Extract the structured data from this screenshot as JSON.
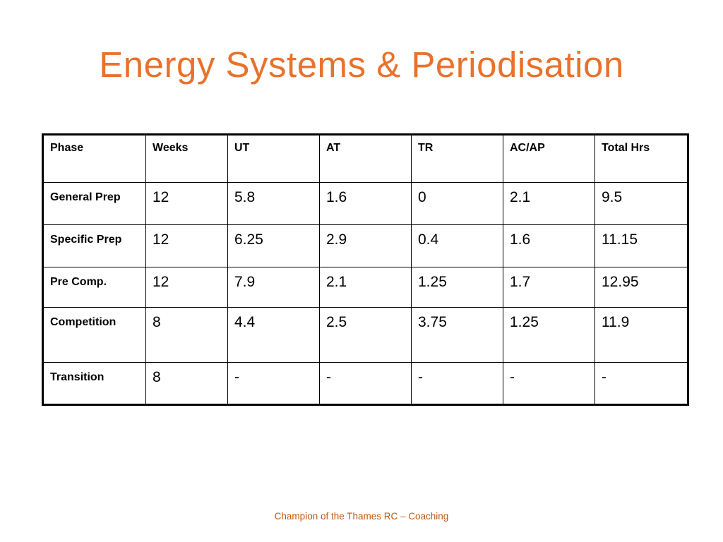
{
  "slide": {
    "title": "Energy Systems & Periodisation",
    "footer": "Champion of the Thames RC – Coaching",
    "accent_color": "#e8722c"
  },
  "table": {
    "headers": [
      "Phase",
      "Weeks",
      "UT",
      "AT",
      "TR",
      "AC/AP",
      "Total Hrs"
    ],
    "rows": [
      [
        "General Prep",
        "12",
        "5.8",
        "1.6",
        "0",
        "2.1",
        "9.5"
      ],
      [
        "Specific Prep",
        "12",
        "6.25",
        "2.9",
        "0.4",
        "1.6",
        "11.15"
      ],
      [
        "Pre Comp.",
        "12",
        "7.9",
        "2.1",
        "1.25",
        "1.7",
        "12.95"
      ],
      [
        "Competition",
        "8",
        "4.4",
        "2.5",
        "3.75",
        "1.25",
        "11.9"
      ],
      [
        "Transition",
        "8",
        "-",
        "-",
        "-",
        "-",
        "-"
      ]
    ]
  }
}
